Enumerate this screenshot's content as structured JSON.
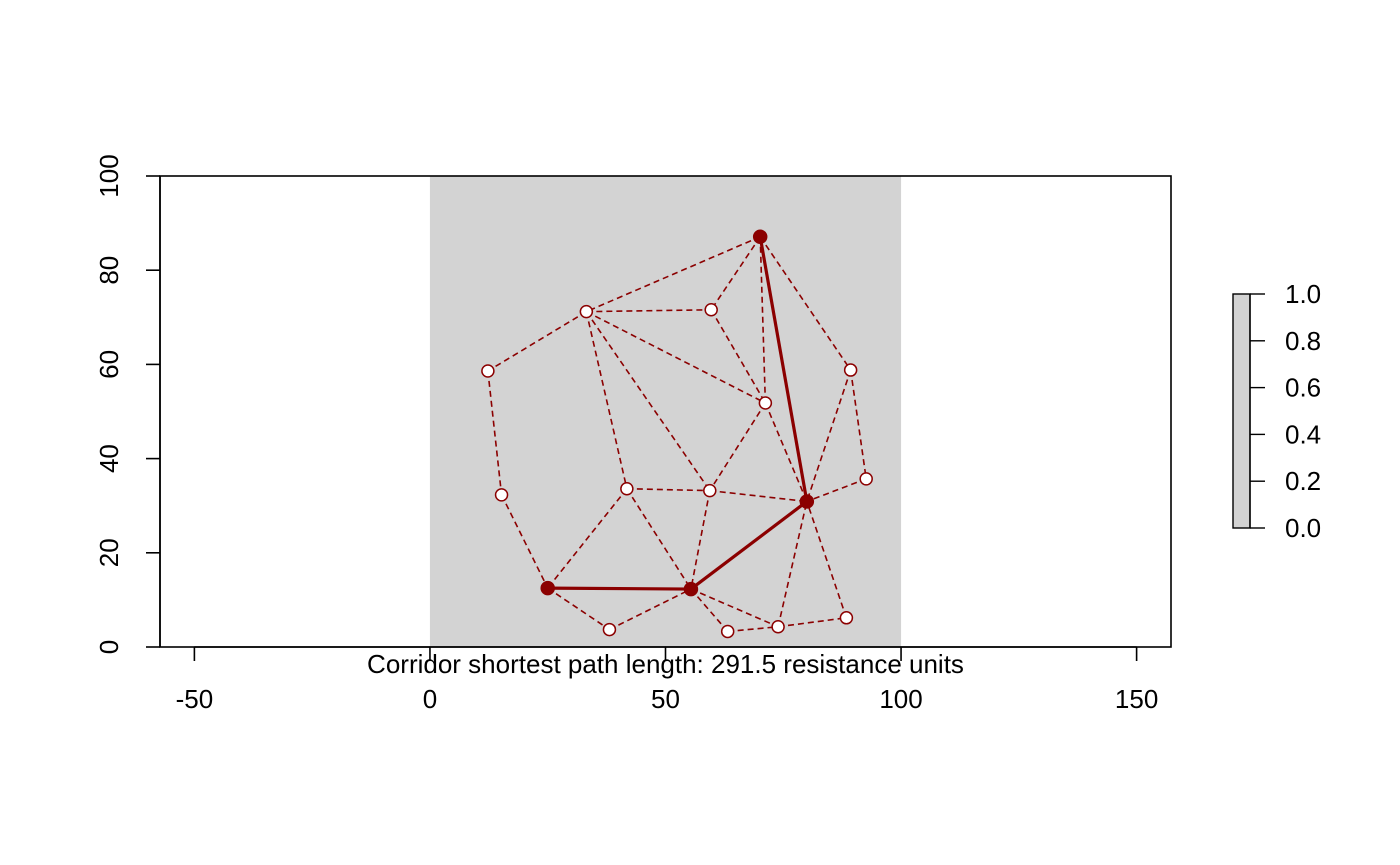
{
  "chart_data": {
    "type": "scatter",
    "title": "",
    "subtitle": "",
    "xlabel": "",
    "ylabel": "",
    "caption": "Corridor shortest path length: 291.5 resistance units",
    "xlim": [
      -57.3,
      157.3
    ],
    "ylim": [
      0,
      100
    ],
    "x_ticks": [
      -50,
      0,
      50,
      100,
      150
    ],
    "y_ticks": [
      0,
      20,
      40,
      60,
      80,
      100
    ],
    "raster": {
      "xmin": 0,
      "xmax": 100,
      "ymin": 0,
      "ymax": 100,
      "value": 1.0,
      "color": "#d3d3d3"
    },
    "legend": {
      "placement": "right",
      "ticks": [
        "0.0",
        "0.2",
        "0.4",
        "0.6",
        "0.8",
        "1.0"
      ],
      "range": [
        0,
        1
      ],
      "color": "#d3d3d3"
    },
    "colors": {
      "network": "#8b0000",
      "node_fill": "#ffffff",
      "path": "#8b0000"
    },
    "nodes": [
      {
        "id": 1,
        "x": 70.1,
        "y": 87.1
      },
      {
        "id": 2,
        "x": 33.2,
        "y": 71.2
      },
      {
        "id": 3,
        "x": 59.7,
        "y": 71.6
      },
      {
        "id": 4,
        "x": 12.3,
        "y": 58.6
      },
      {
        "id": 5,
        "x": 89.3,
        "y": 58.8
      },
      {
        "id": 6,
        "x": 71.2,
        "y": 51.8
      },
      {
        "id": 7,
        "x": 92.6,
        "y": 35.7
      },
      {
        "id": 8,
        "x": 15.2,
        "y": 32.3
      },
      {
        "id": 9,
        "x": 41.8,
        "y": 33.6
      },
      {
        "id": 10,
        "x": 59.4,
        "y": 33.2
      },
      {
        "id": 11,
        "x": 80.0,
        "y": 30.9
      },
      {
        "id": 12,
        "x": 25.0,
        "y": 12.5
      },
      {
        "id": 13,
        "x": 55.4,
        "y": 12.3
      },
      {
        "id": 14,
        "x": 38.1,
        "y": 3.7
      },
      {
        "id": 15,
        "x": 63.2,
        "y": 3.3
      },
      {
        "id": 16,
        "x": 73.9,
        "y": 4.3
      },
      {
        "id": 17,
        "x": 88.4,
        "y": 6.2
      }
    ],
    "edges": [
      [
        1,
        2
      ],
      [
        1,
        3
      ],
      [
        1,
        6
      ],
      [
        1,
        5
      ],
      [
        2,
        3
      ],
      [
        2,
        4
      ],
      [
        2,
        6
      ],
      [
        2,
        9
      ],
      [
        2,
        10
      ],
      [
        3,
        6
      ],
      [
        6,
        11
      ],
      [
        6,
        10
      ],
      [
        5,
        11
      ],
      [
        5,
        7
      ],
      [
        7,
        11
      ],
      [
        4,
        8
      ],
      [
        8,
        12
      ],
      [
        9,
        12
      ],
      [
        9,
        10
      ],
      [
        9,
        13
      ],
      [
        10,
        11
      ],
      [
        10,
        13
      ],
      [
        12,
        14
      ],
      [
        14,
        13
      ],
      [
        13,
        15
      ],
      [
        13,
        16
      ],
      [
        15,
        16
      ],
      [
        16,
        17
      ],
      [
        16,
        11
      ],
      [
        17,
        11
      ]
    ],
    "shortest_path": [
      1,
      11,
      13,
      12
    ]
  }
}
